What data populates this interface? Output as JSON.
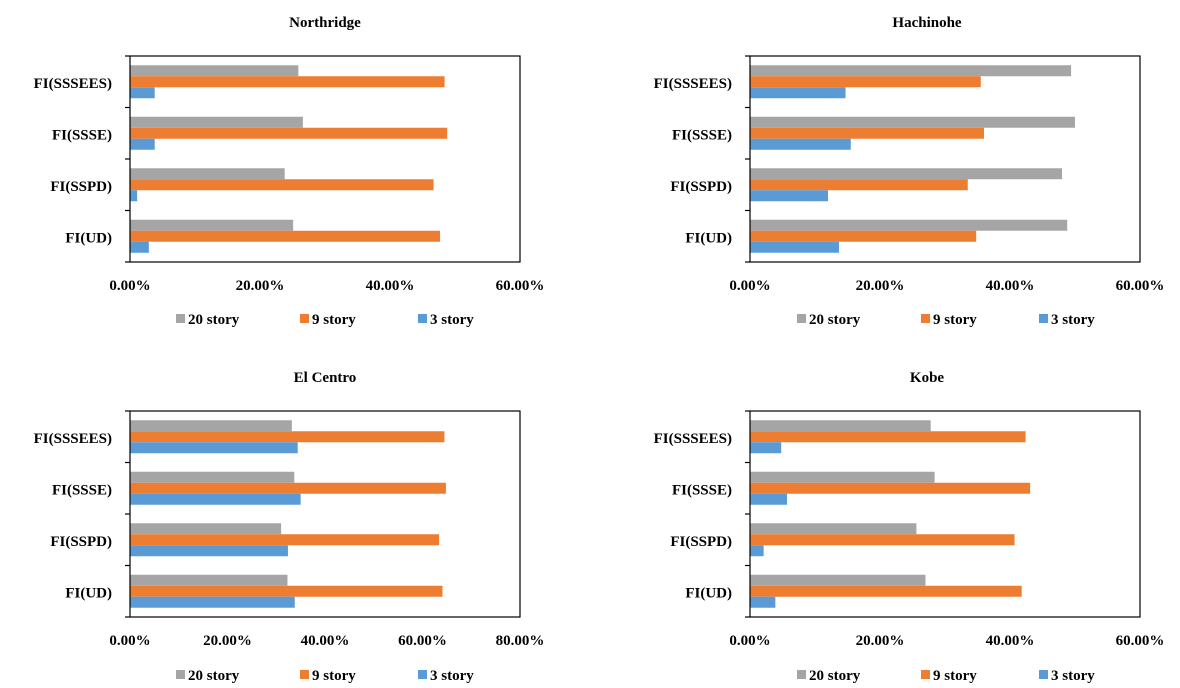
{
  "chart_data": [
    {
      "type": "bar",
      "orientation": "horizontal",
      "title": "Northridge",
      "categories": [
        "FI(SSSEES)",
        "FI(SSSE)",
        "FI(SSPD)",
        "FI(UD)"
      ],
      "xlim": [
        0,
        0.6
      ],
      "xticks": [
        "0.00%",
        "20.00%",
        "40.00%",
        "60.00%"
      ],
      "legend_position": "bottom",
      "series": [
        {
          "name": "20 story",
          "color": "#a5a5a5",
          "values": [
            0.259,
            0.266,
            0.238,
            0.251
          ]
        },
        {
          "name": "9 story",
          "color": "#ed7d31",
          "values": [
            0.484,
            0.488,
            0.467,
            0.477
          ]
        },
        {
          "name": "3 story",
          "color": "#5b9bd5",
          "values": [
            0.038,
            0.038,
            0.011,
            0.029
          ]
        }
      ]
    },
    {
      "type": "bar",
      "orientation": "horizontal",
      "title": "Hachinohe",
      "categories": [
        "FI(SSSEES)",
        "FI(SSSE)",
        "FI(SSPD)",
        "FI(UD)"
      ],
      "xlim": [
        0,
        0.6
      ],
      "xticks": [
        "0.00%",
        "20.00%",
        "40.00%",
        "60.00%"
      ],
      "legend_position": "bottom",
      "series": [
        {
          "name": "20 story",
          "color": "#a5a5a5",
          "values": [
            0.494,
            0.5,
            0.48,
            0.488
          ]
        },
        {
          "name": "9 story",
          "color": "#ed7d31",
          "values": [
            0.355,
            0.36,
            0.335,
            0.348
          ]
        },
        {
          "name": "3 story",
          "color": "#5b9bd5",
          "values": [
            0.147,
            0.155,
            0.12,
            0.137
          ]
        }
      ]
    },
    {
      "type": "bar",
      "orientation": "horizontal",
      "title": "El Centro",
      "categories": [
        "FI(SSSEES)",
        "FI(SSSE)",
        "FI(SSPD)",
        "FI(UD)"
      ],
      "xlim": [
        0,
        0.8
      ],
      "xticks": [
        "0.00%",
        "20.00%",
        "40.00%",
        "60.00%",
        "80.00%"
      ],
      "legend_position": "bottom",
      "series": [
        {
          "name": "20 story",
          "color": "#a5a5a5",
          "values": [
            0.332,
            0.337,
            0.31,
            0.323
          ]
        },
        {
          "name": "9 story",
          "color": "#ed7d31",
          "values": [
            0.645,
            0.648,
            0.634,
            0.641
          ]
        },
        {
          "name": "3 story",
          "color": "#5b9bd5",
          "values": [
            0.344,
            0.35,
            0.324,
            0.338
          ]
        }
      ]
    },
    {
      "type": "bar",
      "orientation": "horizontal",
      "title": "Kobe",
      "categories": [
        "FI(SSSEES)",
        "FI(SSSE)",
        "FI(SSPD)",
        "FI(UD)"
      ],
      "xlim": [
        0,
        0.6
      ],
      "xticks": [
        "0.00%",
        "20.00%",
        "40.00%",
        "60.00%"
      ],
      "legend_position": "bottom",
      "series": [
        {
          "name": "20 story",
          "color": "#a5a5a5",
          "values": [
            0.278,
            0.284,
            0.256,
            0.27
          ]
        },
        {
          "name": "9 story",
          "color": "#ed7d31",
          "values": [
            0.424,
            0.431,
            0.407,
            0.418
          ]
        },
        {
          "name": "3 story",
          "color": "#5b9bd5",
          "values": [
            0.048,
            0.057,
            0.021,
            0.039
          ]
        }
      ]
    }
  ]
}
